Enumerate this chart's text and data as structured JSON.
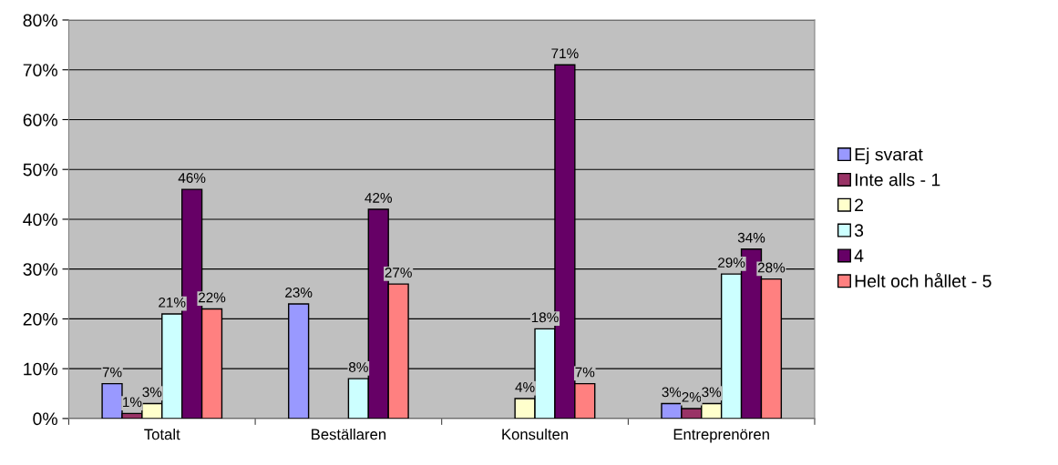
{
  "chart_data": {
    "type": "bar",
    "categories": [
      "Totalt",
      "Beställaren",
      "Konsulten",
      "Entreprenören"
    ],
    "series": [
      {
        "name": "Ej svarat",
        "color": "#9999ff",
        "values": [
          7,
          23,
          null,
          3
        ],
        "value_labels": [
          "7%",
          "23%",
          null,
          "3%"
        ]
      },
      {
        "name": "Inte alls - 1",
        "color": "#993366",
        "values": [
          1,
          null,
          null,
          2
        ],
        "value_labels": [
          "1%",
          null,
          null,
          "2%"
        ]
      },
      {
        "name": "2",
        "color": "#ffffcc",
        "values": [
          3,
          null,
          4,
          3
        ],
        "value_labels": [
          "3%",
          null,
          "4%",
          "3%"
        ]
      },
      {
        "name": "3",
        "color": "#ccffff",
        "values": [
          21,
          8,
          18,
          29
        ],
        "value_labels": [
          "21%",
          "8%",
          "18%",
          "29%"
        ]
      },
      {
        "name": "4",
        "color": "#660066",
        "values": [
          46,
          42,
          71,
          34
        ],
        "value_labels": [
          "46%",
          "42%",
          "71%",
          "34%"
        ]
      },
      {
        "name": "Helt och hållet - 5",
        "color": "#ff8080",
        "values": [
          22,
          27,
          7,
          28
        ],
        "value_labels": [
          "22%",
          "27%",
          "7%",
          "28%"
        ]
      }
    ],
    "ylim": [
      0,
      80
    ],
    "yticks": [
      {
        "value": 0,
        "label": "0%"
      },
      {
        "value": 10,
        "label": "10%"
      },
      {
        "value": 20,
        "label": "20%"
      },
      {
        "value": 30,
        "label": "30%"
      },
      {
        "value": 40,
        "label": "40%"
      },
      {
        "value": 50,
        "label": "50%"
      },
      {
        "value": 60,
        "label": "60%"
      },
      {
        "value": 70,
        "label": "70%"
      },
      {
        "value": 80,
        "label": "80%"
      }
    ],
    "grid": "y",
    "legend": "right"
  }
}
